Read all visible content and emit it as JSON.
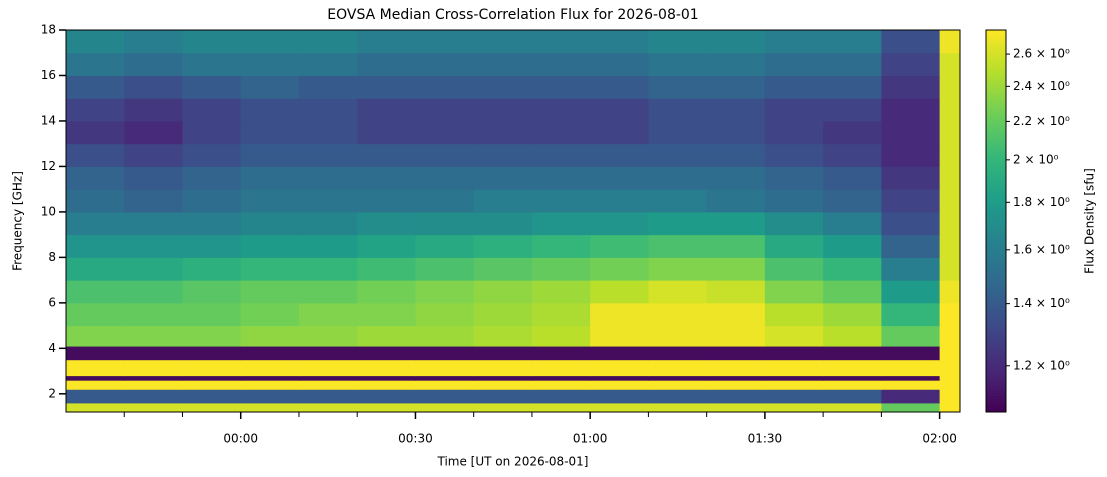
{
  "chart_data": {
    "type": "heatmap",
    "title": "EOVSA Median Cross-Correlation Flux for 2026-08-01",
    "x_label": "Time [UT on 2026-08-01]",
    "y_label": "Frequency [GHz]",
    "colorbar_label": "Flux Density [sfu]",
    "colormap": [
      "#440154",
      "#482878",
      "#3e4989",
      "#31688e",
      "#26828e",
      "#1f9e89",
      "#35b779",
      "#6ece58",
      "#b5de2b",
      "#fde725"
    ],
    "xlim": [
      -30,
      123.5
    ],
    "xticks": [
      {
        "value": 0,
        "label": "00:00"
      },
      {
        "value": 30,
        "label": "00:30"
      },
      {
        "value": 60,
        "label": "01:00"
      },
      {
        "value": 90,
        "label": "01:30"
      },
      {
        "value": 120,
        "label": "02:00"
      }
    ],
    "xminorticks": [
      -20,
      -10,
      10,
      20,
      40,
      50,
      70,
      80,
      100,
      110
    ],
    "ylim": [
      1.2,
      18
    ],
    "yticks": [
      2,
      4,
      6,
      8,
      10,
      12,
      14,
      16,
      18
    ],
    "clim": [
      1.07,
      2.76
    ],
    "clog": true,
    "cticks": [
      {
        "value": 1.2,
        "label": "1.2 × 10⁰"
      },
      {
        "value": 1.4,
        "label": "1.4 × 10⁰"
      },
      {
        "value": 1.6,
        "label": "1.6 × 10⁰"
      },
      {
        "value": 1.8,
        "label": "1.8 × 10⁰"
      },
      {
        "value": 2,
        "label": "2 × 10⁰"
      },
      {
        "value": 2.2,
        "label": "2.2 × 10⁰"
      },
      {
        "value": 2.4,
        "label": "2.4 × 10⁰"
      },
      {
        "value": 2.6,
        "label": "2.6 × 10⁰"
      }
    ],
    "x_edges": [
      -30,
      -20,
      -10,
      0,
      10,
      20,
      30,
      40,
      50,
      60,
      70,
      80,
      90,
      100,
      110,
      120,
      123.5
    ],
    "y_edges": [
      1.2,
      1.6,
      2.2,
      2.6,
      2.8,
      3.5,
      4.1,
      5,
      6,
      7,
      8,
      9,
      10,
      11,
      12,
      13,
      14,
      15,
      16,
      17,
      18
    ],
    "z": [
      [
        2.6,
        2.6,
        2.6,
        2.6,
        2.6,
        2.6,
        2.6,
        2.6,
        2.6,
        2.6,
        2.6,
        2.6,
        2.6,
        2.6,
        2.2,
        2.75
      ],
      [
        1.4,
        1.4,
        1.4,
        1.4,
        1.4,
        1.4,
        1.4,
        1.4,
        1.4,
        1.4,
        1.4,
        1.4,
        1.4,
        1.4,
        1.2,
        2.75
      ],
      [
        2.75,
        2.75,
        2.75,
        2.75,
        2.75,
        2.75,
        2.75,
        2.75,
        2.75,
        2.75,
        2.75,
        2.75,
        2.75,
        2.75,
        2.75,
        2.75
      ],
      [
        1.1,
        1.1,
        1.1,
        1.1,
        1.1,
        1.1,
        1.1,
        1.1,
        1.1,
        1.1,
        1.1,
        1.1,
        1.1,
        1.1,
        1.1,
        2.75
      ],
      [
        2.75,
        2.75,
        2.75,
        2.75,
        2.75,
        2.75,
        2.75,
        2.75,
        2.75,
        2.75,
        2.75,
        2.75,
        2.75,
        2.75,
        2.75,
        2.75
      ],
      [
        1.1,
        1.1,
        1.1,
        1.1,
        1.1,
        1.1,
        1.1,
        1.1,
        1.1,
        1.1,
        1.1,
        1.1,
        1.1,
        1.1,
        1.1,
        2.75
      ],
      [
        2.3,
        2.3,
        2.3,
        2.35,
        2.35,
        2.4,
        2.4,
        2.45,
        2.5,
        2.7,
        2.7,
        2.7,
        2.6,
        2.5,
        2.2,
        2.75
      ],
      [
        2.2,
        2.2,
        2.2,
        2.25,
        2.3,
        2.3,
        2.35,
        2.4,
        2.45,
        2.7,
        2.7,
        2.7,
        2.5,
        2.4,
        2.0,
        2.75
      ],
      [
        2.1,
        2.1,
        2.15,
        2.2,
        2.2,
        2.25,
        2.3,
        2.35,
        2.4,
        2.5,
        2.6,
        2.55,
        2.3,
        2.2,
        1.8,
        2.7
      ],
      [
        1.9,
        1.9,
        1.95,
        2.0,
        2.0,
        2.05,
        2.1,
        2.15,
        2.2,
        2.25,
        2.3,
        2.3,
        2.1,
        2.0,
        1.6,
        2.6
      ],
      [
        1.75,
        1.75,
        1.75,
        1.8,
        1.8,
        1.85,
        1.9,
        1.95,
        2.0,
        2.05,
        2.1,
        2.1,
        1.9,
        1.8,
        1.45,
        2.6
      ],
      [
        1.6,
        1.6,
        1.6,
        1.65,
        1.65,
        1.7,
        1.7,
        1.7,
        1.75,
        1.75,
        1.8,
        1.8,
        1.7,
        1.6,
        1.35,
        2.6
      ],
      [
        1.5,
        1.45,
        1.5,
        1.55,
        1.55,
        1.55,
        1.55,
        1.6,
        1.6,
        1.6,
        1.6,
        1.55,
        1.5,
        1.45,
        1.3,
        2.6
      ],
      [
        1.45,
        1.4,
        1.45,
        1.5,
        1.5,
        1.5,
        1.5,
        1.5,
        1.5,
        1.5,
        1.5,
        1.5,
        1.45,
        1.4,
        1.25,
        2.6
      ],
      [
        1.35,
        1.3,
        1.35,
        1.4,
        1.4,
        1.4,
        1.4,
        1.4,
        1.4,
        1.4,
        1.4,
        1.4,
        1.35,
        1.3,
        1.2,
        2.6
      ],
      [
        1.25,
        1.2,
        1.3,
        1.35,
        1.35,
        1.3,
        1.3,
        1.3,
        1.3,
        1.3,
        1.35,
        1.35,
        1.3,
        1.25,
        1.2,
        2.6
      ],
      [
        1.3,
        1.25,
        1.3,
        1.35,
        1.35,
        1.3,
        1.3,
        1.3,
        1.3,
        1.3,
        1.35,
        1.35,
        1.3,
        1.3,
        1.2,
        2.6
      ],
      [
        1.4,
        1.35,
        1.4,
        1.45,
        1.4,
        1.4,
        1.4,
        1.4,
        1.4,
        1.4,
        1.45,
        1.45,
        1.4,
        1.4,
        1.25,
        2.6
      ],
      [
        1.55,
        1.5,
        1.55,
        1.55,
        1.55,
        1.5,
        1.5,
        1.5,
        1.5,
        1.5,
        1.55,
        1.55,
        1.5,
        1.5,
        1.3,
        2.6
      ],
      [
        1.65,
        1.6,
        1.65,
        1.65,
        1.65,
        1.6,
        1.6,
        1.6,
        1.6,
        1.6,
        1.65,
        1.65,
        1.6,
        1.6,
        1.35,
        2.7
      ]
    ]
  }
}
